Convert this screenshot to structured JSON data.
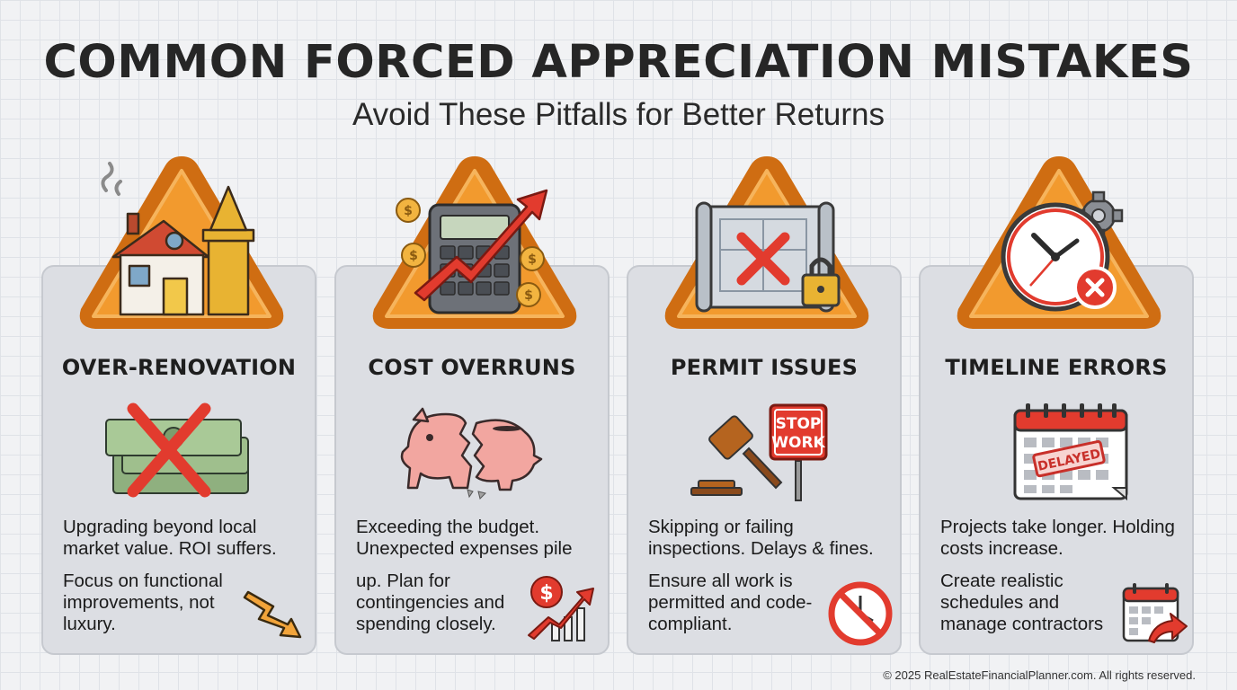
{
  "header": {
    "title": "COMMON FORCED APPRECIATION MISTAKES",
    "subtitle": "Avoid These Pitfalls for Better Returns"
  },
  "cards": [
    {
      "title": "OVER-RENOVATION",
      "problem": "Upgrading beyond local market value. ROI suffers.",
      "solution": "Focus on functional improvements, not luxury.",
      "icons": [
        "house-tower-icon",
        "money-crossed-icon",
        "down-trend-arrow-icon"
      ]
    },
    {
      "title": "COST OVERRUNS",
      "problem": "Exceeding the budget. Unexpected expenses pile",
      "solution": "up. Plan for contingencies and spending closely.",
      "icons": [
        "calculator-rising-arrow-icon",
        "broken-piggy-bank-icon",
        "dollar-growth-chart-icon"
      ]
    },
    {
      "title": "PERMIT ISSUES",
      "problem": "Skipping or failing inspections. Delays & fines.",
      "solution": "Ensure all work is permitted and code-compliant.",
      "stop_sign": [
        "STOP",
        "WORK"
      ],
      "icons": [
        "blueprint-lock-icon",
        "gavel-stop-sign-icon",
        "no-clock-icon"
      ]
    },
    {
      "title": "TIMELINE ERRORS",
      "problem": "Projects take longer. Holding costs increase.",
      "solution": "Create realistic schedules and manage contractors",
      "stamp": "DELAYED",
      "icons": [
        "clock-gear-cancel-icon",
        "delayed-calendar-icon",
        "calendar-arrow-icon"
      ]
    }
  ],
  "footer": "© 2025 RealEstateFinancialPlanner.com. All rights reserved.",
  "colors": {
    "warning_orange": "#f29a2e",
    "warning_border": "#cf6d12",
    "accent_red": "#e23b2e",
    "card_bg": "#dcdee3"
  }
}
